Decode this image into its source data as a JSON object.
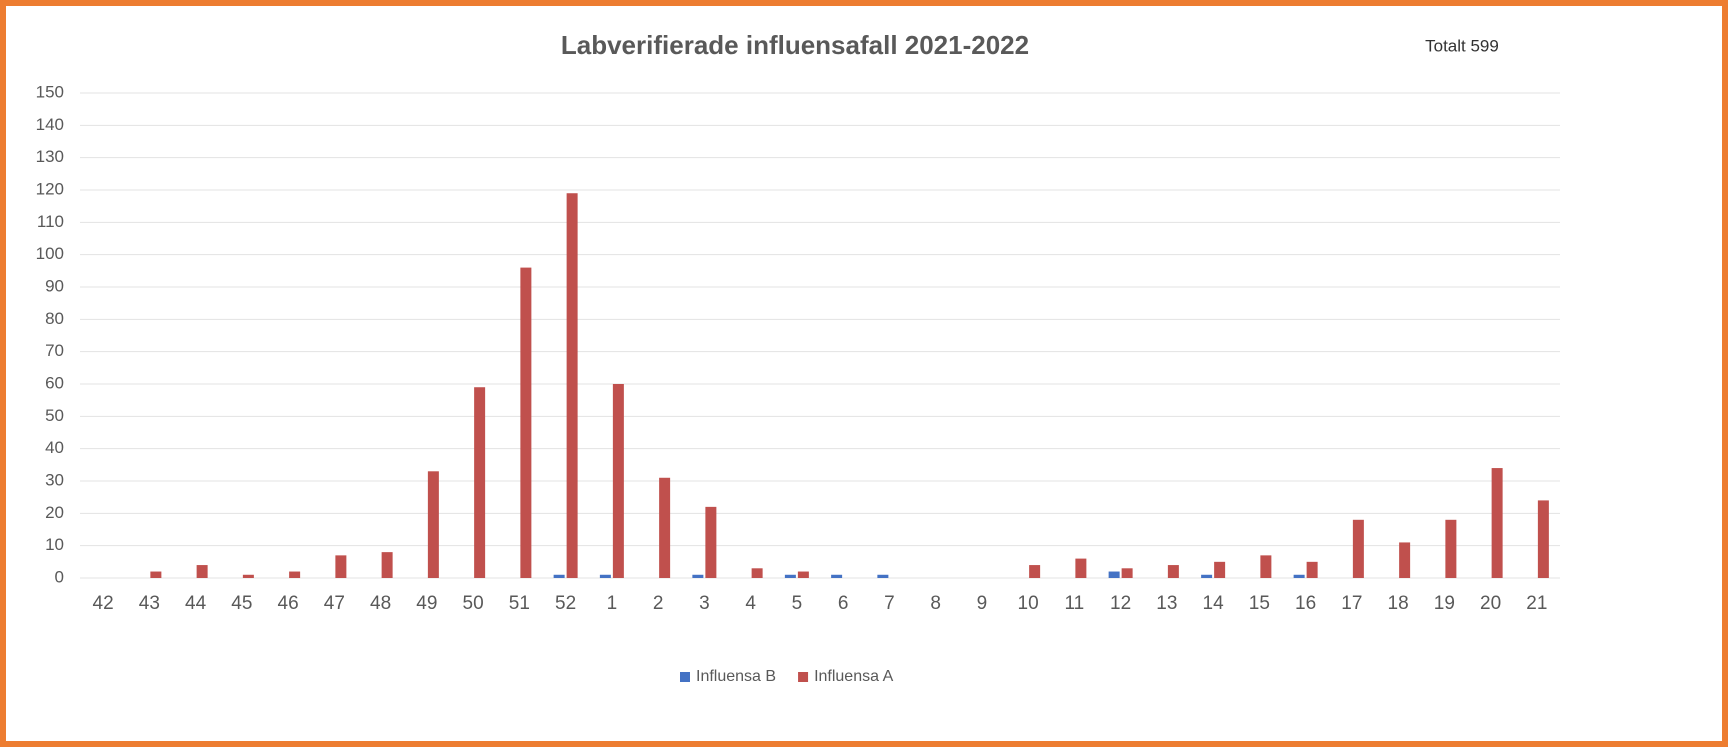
{
  "chart_data": {
    "type": "bar",
    "title": "Labverifierade influensafall 2021-2022",
    "annotation": "Totalt 599",
    "categories": [
      "42",
      "43",
      "44",
      "45",
      "46",
      "47",
      "48",
      "49",
      "50",
      "51",
      "52",
      "1",
      "2",
      "3",
      "4",
      "5",
      "6",
      "7",
      "8",
      "9",
      "10",
      "11",
      "12",
      "13",
      "14",
      "15",
      "16",
      "17",
      "18",
      "19",
      "20",
      "21"
    ],
    "series": [
      {
        "name": "Influensa B",
        "color": "#4472c4",
        "values": [
          0,
          0,
          0,
          0,
          0,
          0,
          0,
          0,
          0,
          0,
          1,
          1,
          0,
          1,
          0,
          1,
          1,
          1,
          0,
          0,
          0,
          0,
          2,
          0,
          1,
          0,
          1,
          0,
          0,
          0,
          0,
          0
        ]
      },
      {
        "name": "Influensa A",
        "color": "#c0504d",
        "values": [
          0,
          2,
          4,
          1,
          2,
          7,
          8,
          33,
          59,
          96,
          119,
          60,
          31,
          22,
          3,
          2,
          0,
          0,
          0,
          0,
          4,
          6,
          3,
          4,
          5,
          7,
          5,
          18,
          11,
          18,
          34,
          24
        ]
      }
    ],
    "ylim": [
      0,
      150
    ],
    "yticks": [
      0,
      10,
      20,
      30,
      40,
      50,
      60,
      70,
      80,
      90,
      100,
      110,
      120,
      130,
      140,
      150
    ],
    "grid": true,
    "legend": "bottom"
  }
}
